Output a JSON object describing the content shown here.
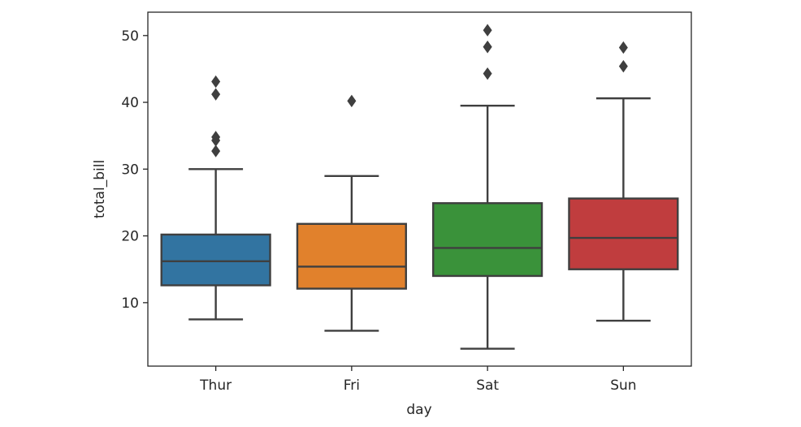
{
  "chart_data": {
    "type": "box",
    "xlabel": "day",
    "ylabel": "total_bill",
    "ylim": [
      0.5,
      53.5
    ],
    "yticks": [
      10,
      20,
      30,
      40,
      50
    ],
    "grid": false,
    "categories": [
      "Thur",
      "Fri",
      "Sat",
      "Sun"
    ],
    "boxes": [
      {
        "category": "Thur",
        "whisker_low": 7.5,
        "q1": 12.6,
        "median": 16.2,
        "q3": 20.2,
        "whisker_high": 30.0,
        "outliers": [
          32.7,
          34.3,
          34.8,
          41.2,
          43.1
        ],
        "color": "#3274a1"
      },
      {
        "category": "Fri",
        "whisker_low": 5.8,
        "q1": 12.1,
        "median": 15.4,
        "q3": 21.8,
        "whisker_high": 28.97,
        "outliers": [
          40.2
        ],
        "color": "#e1812c"
      },
      {
        "category": "Sat",
        "whisker_low": 3.1,
        "q1": 14.0,
        "median": 18.2,
        "q3": 24.9,
        "whisker_high": 39.5,
        "outliers": [
          44.3,
          48.3,
          48.3,
          50.8
        ],
        "color": "#3a923a"
      },
      {
        "category": "Sun",
        "whisker_low": 7.3,
        "q1": 15.0,
        "median": 19.7,
        "q3": 25.6,
        "whisker_high": 40.6,
        "outliers": [
          45.4,
          48.2
        ],
        "color": "#c03d3e"
      }
    ],
    "line_color": "#3f3f3f"
  }
}
